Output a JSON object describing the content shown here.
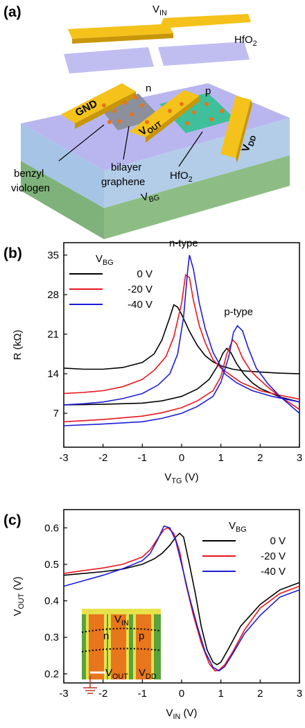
{
  "diagram": {
    "panel_label": "(a)",
    "labels": [
      [
        "V",
        "IN"
      ],
      [
        "HfO",
        "2"
      ],
      "n",
      "p",
      "GND",
      [
        "V",
        "OUT"
      ],
      [
        "V",
        "DD"
      ],
      [
        "V",
        "BG"
      ],
      "benzyl",
      "viologen",
      "bilayer",
      "graphene",
      [
        "HfO",
        "2"
      ]
    ]
  },
  "chart_data": [
    {
      "type": "line",
      "panel_label": "(b)",
      "xlabel": [
        "V",
        "TG",
        " (V)"
      ],
      "ylabel": [
        "R (kΩ)"
      ],
      "xlim": [
        -3,
        3
      ],
      "ylim": [
        1,
        37.2
      ],
      "xticks": [
        -3,
        -2,
        -1,
        0,
        1,
        2,
        3
      ],
      "yticks": [
        7,
        14,
        21,
        28,
        35
      ],
      "legend": "upper left",
      "legend_title": [
        "V",
        "BG"
      ],
      "annotations": [
        "n-type",
        "p-type"
      ],
      "series": [
        {
          "name": "0 V",
          "color": "#000000",
          "branches": [
            {
              "x": [
                -3,
                -2.5,
                -2,
                -1.5,
                -1,
                -0.7,
                -0.5,
                -0.3,
                -0.2,
                -0.1,
                0,
                0.2,
                0.4,
                0.6,
                0.8,
                1,
                1.3,
                1.6,
                2,
                2.5,
                3
              ],
              "values": [
                15,
                14.8,
                14.8,
                15.1,
                16,
                17.5,
                20,
                24,
                26.2,
                25.8,
                24.5,
                21.5,
                19,
                17.2,
                16.1,
                15.4,
                14.8,
                14.5,
                14.3,
                14.1,
                14
              ]
            },
            {
              "x": [
                -3,
                -2,
                -1,
                -0.5,
                0,
                0.4,
                0.7,
                0.9,
                1.05,
                1.15,
                1.25,
                1.4,
                1.6,
                1.8,
                2,
                2.5,
                3
              ],
              "values": [
                8.5,
                8.6,
                8.8,
                9.2,
                10,
                11.3,
                13,
                15.2,
                17.6,
                18.5,
                17.8,
                15.8,
                13.8,
                12.4,
                11.4,
                9.9,
                9
              ]
            }
          ]
        },
        {
          "name": "-20 V",
          "color": "#e8141c",
          "branches": [
            {
              "x": [
                -3,
                -2.5,
                -2,
                -1.5,
                -1,
                -0.7,
                -0.4,
                -0.2,
                0,
                0.1,
                0.2,
                0.3,
                0.45,
                0.6,
                0.8,
                1,
                1.2,
                1.5,
                2,
                2.5,
                3
              ],
              "values": [
                10.5,
                10.7,
                11,
                11.7,
                13,
                14.6,
                17,
                20.5,
                26.5,
                31.5,
                31,
                27,
                22.5,
                19.5,
                16.5,
                15,
                14,
                12.5,
                11,
                10.2,
                9.5
              ]
            },
            {
              "x": [
                -3,
                -2,
                -1,
                -0.5,
                0,
                0.4,
                0.8,
                1,
                1.15,
                1.3,
                1.4,
                1.55,
                1.75,
                1.9,
                2.2,
                2.5,
                3
              ],
              "values": [
                5.5,
                5.9,
                6.5,
                7.1,
                8,
                9.2,
                11,
                13.5,
                17.5,
                20,
                19.3,
                16.8,
                14.6,
                13.5,
                11.6,
                10,
                7.7
              ]
            }
          ]
        },
        {
          "name": "-40 V",
          "color": "#1c1cd8",
          "branches": [
            {
              "x": [
                -3,
                -2.5,
                -2,
                -1.5,
                -1,
                -0.6,
                -0.3,
                -0.1,
                0.05,
                0.15,
                0.2,
                0.3,
                0.45,
                0.6,
                0.8,
                1.1,
                1.4,
                1.8,
                2.3,
                3
              ],
              "values": [
                8.5,
                8.7,
                9,
                9.6,
                10.5,
                12,
                14,
                17.5,
                24,
                32,
                35,
                32.5,
                26.5,
                22,
                17.8,
                14,
                12.4,
                11,
                10,
                9
              ]
            },
            {
              "x": [
                -3,
                -2,
                -1,
                -0.5,
                0,
                0.4,
                0.8,
                1,
                1.2,
                1.32,
                1.42,
                1.55,
                1.7,
                1.9,
                2.2,
                2.5,
                3
              ],
              "values": [
                4.8,
                5.1,
                5.5,
                6.1,
                7,
                8.2,
                10,
                12.5,
                17,
                21.3,
                22.5,
                21.6,
                18.5,
                15,
                12.2,
                10,
                7
              ]
            }
          ]
        }
      ]
    },
    {
      "type": "line",
      "panel_label": "(c)",
      "xlabel": [
        "V",
        "IN",
        " (V)"
      ],
      "ylabel": [
        "V",
        "OUT",
        " (V)"
      ],
      "xlim": [
        -3,
        3
      ],
      "ylim": [
        0.175,
        0.65
      ],
      "xticks": [
        -3,
        -2,
        -1,
        0,
        1,
        2,
        3
      ],
      "yticks": [
        0.2,
        0.3,
        0.4,
        0.5,
        0.6
      ],
      "legend": "upper right",
      "legend_title": [
        "V",
        "BG"
      ],
      "inset": [
        [
          "V",
          "IN"
        ],
        "n",
        "p",
        [
          "V",
          "OUT"
        ],
        [
          "V",
          "DD"
        ]
      ],
      "series": [
        {
          "name": "0 V",
          "color": "#000000",
          "x": [
            -3,
            -2.5,
            -2,
            -1.5,
            -1,
            -0.7,
            -0.5,
            -0.3,
            -0.15,
            -0.05,
            0.05,
            0.2,
            0.35,
            0.5,
            0.65,
            0.8,
            0.9,
            1,
            1.2,
            1.5,
            2,
            2.5,
            3
          ],
          "values": [
            0.47,
            0.475,
            0.48,
            0.487,
            0.5,
            0.515,
            0.53,
            0.552,
            0.575,
            0.585,
            0.575,
            0.5,
            0.42,
            0.33,
            0.265,
            0.232,
            0.225,
            0.232,
            0.27,
            0.33,
            0.39,
            0.43,
            0.45
          ]
        },
        {
          "name": "-20 V",
          "color": "#e8141c",
          "x": [
            -3,
            -2.5,
            -2,
            -1.5,
            -1,
            -0.8,
            -0.6,
            -0.45,
            -0.35,
            -0.2,
            -0.05,
            0.1,
            0.3,
            0.5,
            0.7,
            0.85,
            0.95,
            1.1,
            1.3,
            1.6,
            2,
            2.5,
            3
          ],
          "values": [
            0.475,
            0.483,
            0.49,
            0.5,
            0.52,
            0.54,
            0.572,
            0.595,
            0.6,
            0.585,
            0.535,
            0.45,
            0.36,
            0.285,
            0.228,
            0.208,
            0.21,
            0.225,
            0.26,
            0.32,
            0.38,
            0.42,
            0.44
          ]
        },
        {
          "name": "-40 V",
          "color": "#1c1cd8",
          "x": [
            -3,
            -2.5,
            -2,
            -1.5,
            -1,
            -0.8,
            -0.6,
            -0.45,
            -0.3,
            -0.15,
            0,
            0.2,
            0.4,
            0.6,
            0.8,
            0.95,
            1.1,
            1.3,
            1.6,
            2,
            2.5,
            3
          ],
          "values": [
            0.44,
            0.455,
            0.47,
            0.488,
            0.51,
            0.53,
            0.57,
            0.605,
            0.6,
            0.565,
            0.5,
            0.41,
            0.33,
            0.26,
            0.218,
            0.208,
            0.22,
            0.255,
            0.31,
            0.36,
            0.41,
            0.43
          ]
        }
      ]
    }
  ]
}
